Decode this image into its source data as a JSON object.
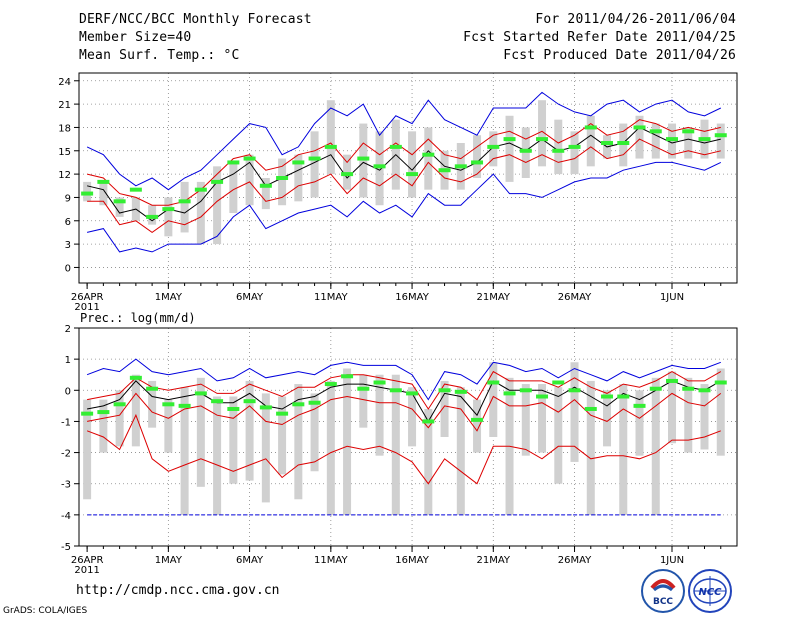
{
  "header": {
    "title": "DERF/NCC/BCC Monthly Forecast",
    "member_size": "Member Size=40",
    "variable": "Mean Surf. Temp.: °C",
    "period": "For 2011/04/26-2011/06/04",
    "started": "Fcst Started Refer Date 2011/04/25",
    "produced": "Fcst Produced Date 2011/04/26"
  },
  "footer": {
    "url": "http://cmdp.ncc.cma.gov.cn",
    "grads": "GrADS: COLA/IGES",
    "logo_bcc": "BCC",
    "logo_ncc": "NCC"
  },
  "colors": {
    "envelope": "#0000dd",
    "spread": "#dd0000",
    "mean": "#000000",
    "box": "#d0d0d0",
    "observed": "#33ee33"
  },
  "chart_data": [
    {
      "type": "line",
      "title": "Mean Surf. Temp.: °C",
      "x": [
        "26APR",
        "27APR",
        "28APR",
        "29APR",
        "30APR",
        "1MAY",
        "2MAY",
        "3MAY",
        "4MAY",
        "5MAY",
        "6MAY",
        "7MAY",
        "8MAY",
        "9MAY",
        "10MAY",
        "11MAY",
        "12MAY",
        "13MAY",
        "14MAY",
        "15MAY",
        "16MAY",
        "17MAY",
        "18MAY",
        "19MAY",
        "20MAY",
        "21MAY",
        "22MAY",
        "23MAY",
        "24MAY",
        "25MAY",
        "26MAY",
        "27MAY",
        "28MAY",
        "29MAY",
        "30MAY",
        "31MAY",
        "1JUN",
        "2JUN",
        "3JUN",
        "4JUN"
      ],
      "x_tick_labels": [
        "26APR",
        "1MAY",
        "6MAY",
        "11MAY",
        "16MAY",
        "21MAY",
        "26MAY",
        "1JUN"
      ],
      "x_tick_sub": "2011",
      "ylim": [
        -2,
        25
      ],
      "y_ticks": [
        0,
        3,
        6,
        9,
        12,
        15,
        18,
        21,
        24
      ],
      "grid": true,
      "series": [
        {
          "name": "max",
          "color": "blue",
          "values": [
            15.5,
            14.5,
            12,
            10.5,
            11.5,
            10,
            11.5,
            12.5,
            14.5,
            16.5,
            18.5,
            18,
            14.5,
            15.5,
            18.5,
            20.5,
            19.5,
            21,
            17,
            19.5,
            18.5,
            21.5,
            19,
            18,
            17,
            20.5,
            20.5,
            20.5,
            22.5,
            21,
            20,
            19.5,
            21,
            21.5,
            20,
            21,
            21.5,
            20,
            19.5,
            20.5
          ]
        },
        {
          "name": "spread-upper",
          "color": "red",
          "values": [
            12,
            11.5,
            9.5,
            9,
            8,
            8,
            8.5,
            10,
            12,
            14,
            14.5,
            12.5,
            13,
            14.5,
            15,
            16,
            13.5,
            16,
            14.5,
            16,
            14.5,
            16.5,
            14.5,
            14,
            15.5,
            17,
            17.5,
            16.5,
            17.5,
            16,
            17,
            18.5,
            17,
            17.5,
            19,
            18.5,
            17.5,
            18,
            17.5,
            18
          ]
        },
        {
          "name": "mean",
          "color": "black",
          "values": [
            10.5,
            10,
            7,
            7.5,
            6,
            7.5,
            7,
            8.5,
            11,
            12,
            13.5,
            10.5,
            11.5,
            12.5,
            13.5,
            14.5,
            11.5,
            13.5,
            12.5,
            14.5,
            12.5,
            15,
            13,
            12.5,
            13.5,
            15.5,
            16,
            15,
            16.5,
            15,
            15.5,
            17,
            15.5,
            16,
            18,
            17,
            16,
            16.5,
            16,
            16.5
          ]
        },
        {
          "name": "spread-lower",
          "color": "red",
          "values": [
            8.5,
            8.5,
            5.5,
            6,
            4.5,
            6,
            5.5,
            6.5,
            8.5,
            10,
            11,
            8.5,
            9,
            10.5,
            11,
            12,
            9.5,
            11.5,
            10.5,
            12,
            10.5,
            13.5,
            11.5,
            11,
            12,
            14,
            14.5,
            13.5,
            14.5,
            13.5,
            14,
            15.5,
            14,
            14.5,
            16.5,
            15.5,
            14.5,
            15,
            14.5,
            15
          ]
        },
        {
          "name": "min",
          "color": "blue",
          "values": [
            4.5,
            5,
            2,
            2.5,
            2,
            3,
            3,
            3,
            4,
            6.5,
            8,
            5,
            6,
            7,
            7.5,
            8,
            6.5,
            8.5,
            7,
            8,
            6.5,
            9.5,
            8,
            8,
            10,
            12,
            9.5,
            9.5,
            9,
            10,
            11,
            11.5,
            11.5,
            12.5,
            13,
            13.5,
            13.5,
            13,
            12.5,
            13.5
          ]
        },
        {
          "name": "observed",
          "color": "green",
          "values": [
            9.5,
            11,
            8.5,
            10,
            6.5,
            7.5,
            8.5,
            10,
            11,
            13.5,
            14,
            10.5,
            11.5,
            13.5,
            14,
            15.5,
            12,
            14,
            13,
            15.5,
            12,
            14.5,
            12.5,
            13,
            13.5,
            15.5,
            16.5,
            15,
            16.5,
            15,
            15.5,
            18,
            16,
            16,
            18,
            17.5,
            16.5,
            17.5,
            16.5,
            17
          ]
        },
        {
          "name": "box-high",
          "color": "gray",
          "values": [
            11,
            11,
            9,
            9,
            8,
            9,
            11,
            11,
            13,
            13.5,
            14.5,
            11.5,
            14,
            14.5,
            17.5,
            21.5,
            14.5,
            18.5,
            17.5,
            19,
            17.5,
            18,
            15,
            16,
            17,
            17.5,
            19.5,
            18,
            21.5,
            19,
            17.5,
            19.5,
            17,
            18.5,
            19.5,
            18.5,
            18.5,
            18,
            19,
            18.5
          ]
        },
        {
          "name": "box-low",
          "color": "gray",
          "values": [
            8.5,
            8,
            6.5,
            6,
            5.5,
            4,
            4.5,
            3,
            3,
            7,
            8,
            7.5,
            8,
            8.5,
            9,
            12,
            10,
            9,
            8,
            10,
            9,
            10,
            10,
            10,
            11.5,
            13,
            11,
            11.5,
            13,
            12,
            12,
            13,
            14,
            13,
            14,
            14,
            14,
            14,
            14,
            14
          ]
        }
      ]
    },
    {
      "type": "line",
      "title": "Prec.: log(mm/d)",
      "x": [
        "26APR",
        "27APR",
        "28APR",
        "29APR",
        "30APR",
        "1MAY",
        "2MAY",
        "3MAY",
        "4MAY",
        "5MAY",
        "6MAY",
        "7MAY",
        "8MAY",
        "9MAY",
        "10MAY",
        "11MAY",
        "12MAY",
        "13MAY",
        "14MAY",
        "15MAY",
        "16MAY",
        "17MAY",
        "18MAY",
        "19MAY",
        "20MAY",
        "21MAY",
        "22MAY",
        "23MAY",
        "24MAY",
        "25MAY",
        "26MAY",
        "27MAY",
        "28MAY",
        "29MAY",
        "30MAY",
        "31MAY",
        "1JUN",
        "2JUN",
        "3JUN",
        "4JUN"
      ],
      "x_tick_labels": [
        "26APR",
        "1MAY",
        "6MAY",
        "11MAY",
        "16MAY",
        "21MAY",
        "26MAY",
        "1JUN"
      ],
      "x_tick_sub": "2011",
      "ylim": [
        -5,
        2
      ],
      "y_ticks": [
        -5,
        -4,
        -3,
        -2,
        -1,
        0,
        1,
        2
      ],
      "grid": true,
      "series": [
        {
          "name": "max",
          "color": "blue",
          "values": [
            0.5,
            0.7,
            0.6,
            1.0,
            0.6,
            0.5,
            0.6,
            0.7,
            0.3,
            0.4,
            0.7,
            0.4,
            0.5,
            0.6,
            0.5,
            0.8,
            0.9,
            0.8,
            0.8,
            0.8,
            0.5,
            -0.3,
            0.6,
            0.5,
            0.2,
            0.9,
            0.8,
            0.6,
            0.7,
            0.4,
            0.7,
            0.5,
            0.3,
            0.6,
            0.4,
            0.6,
            0.8,
            0.7,
            0.7,
            0.9
          ]
        },
        {
          "name": "spread-upper",
          "color": "red",
          "values": [
            -0.3,
            -0.2,
            -0.1,
            0.4,
            0.1,
            0,
            0.1,
            0.2,
            -0.1,
            -0.1,
            0.2,
            0,
            -0.2,
            0.1,
            0.1,
            0.4,
            0.5,
            0.5,
            0.4,
            0.3,
            0.2,
            -0.6,
            0.2,
            0.1,
            -0.3,
            0.6,
            0.3,
            0.3,
            0.3,
            0.1,
            0.4,
            0.1,
            -0.1,
            0.2,
            0.1,
            0.3,
            0.6,
            0.3,
            0.3,
            0.6
          ]
        },
        {
          "name": "mean",
          "color": "black",
          "values": [
            -0.6,
            -0.5,
            -0.3,
            0.3,
            -0.2,
            -0.3,
            -0.2,
            -0.1,
            -0.4,
            -0.4,
            -0.1,
            -0.5,
            -0.6,
            -0.3,
            -0.2,
            0.1,
            0.2,
            0.2,
            0.1,
            0,
            -0.1,
            -1.0,
            -0.1,
            -0.2,
            -0.8,
            0.3,
            0,
            0,
            0,
            -0.2,
            0.1,
            -0.2,
            -0.5,
            -0.1,
            -0.3,
            0,
            0.3,
            0.1,
            0,
            0.3
          ]
        },
        {
          "name": "spread-lower",
          "color": "red",
          "values": [
            -1.0,
            -0.9,
            -0.8,
            -0.1,
            -0.7,
            -0.9,
            -0.6,
            -0.5,
            -0.8,
            -0.9,
            -0.5,
            -1.0,
            -1.1,
            -0.8,
            -0.6,
            -0.3,
            -0.2,
            -0.3,
            -0.4,
            -0.4,
            -0.6,
            -1.2,
            -0.5,
            -0.6,
            -1.3,
            -0.2,
            -0.5,
            -0.5,
            -0.4,
            -0.7,
            -0.3,
            -0.8,
            -1.0,
            -0.6,
            -0.9,
            -0.5,
            -0.1,
            -0.4,
            -0.5,
            -0.1
          ]
        },
        {
          "name": "min",
          "color": "red",
          "values": [
            -1.3,
            -1.5,
            -1.9,
            -0.8,
            -2.2,
            -2.6,
            -2.4,
            -2.2,
            -2.4,
            -2.6,
            -2.4,
            -2.2,
            -2.8,
            -2.4,
            -2.3,
            -2.0,
            -1.8,
            -1.9,
            -1.8,
            -2.0,
            -2.3,
            -3.0,
            -2.2,
            -2.6,
            -3.0,
            -1.8,
            -1.8,
            -1.9,
            -2.2,
            -1.8,
            -1.8,
            -2.2,
            -2.1,
            -2.1,
            -2.2,
            -2.0,
            -1.6,
            -1.6,
            -1.5,
            -1.3
          ]
        },
        {
          "name": "observed",
          "color": "green",
          "values": [
            -0.75,
            -0.7,
            -0.45,
            0.4,
            0.05,
            -0.45,
            -0.5,
            -0.1,
            -0.35,
            -0.6,
            -0.35,
            -0.55,
            -0.75,
            -0.45,
            -0.4,
            0.2,
            0.45,
            0.05,
            0.25,
            0.0,
            -0.1,
            -1.0,
            0.0,
            -0.05,
            -0.95,
            0.25,
            -0.1,
            0.0,
            -0.2,
            0.25,
            0.0,
            -0.6,
            -0.2,
            -0.2,
            -0.5,
            0.05,
            0.3,
            0.05,
            0.0,
            0.25
          ]
        },
        {
          "name": "box-high",
          "color": "gray",
          "values": [
            -0.3,
            -0.3,
            0,
            0.5,
            0.3,
            -0.3,
            0.1,
            0.4,
            -0.2,
            -0.2,
            0.3,
            -0.1,
            -0.2,
            0.2,
            -0.1,
            0.3,
            0.7,
            0.5,
            0.5,
            0.5,
            0.1,
            -0.6,
            0.3,
            0.1,
            -0.3,
            0.9,
            0.4,
            0.2,
            0.2,
            0.1,
            0.9,
            0.3,
            0,
            0.2,
            0,
            0.4,
            0.6,
            0.4,
            0.2,
            0.7
          ]
        },
        {
          "name": "box-low",
          "color": "gray",
          "values": [
            -3.5,
            -2.0,
            -1.8,
            -1.8,
            -1.2,
            -2.0,
            -4.0,
            -3.1,
            -4.0,
            -3.0,
            -2.9,
            -3.6,
            -2.7,
            -3.5,
            -2.6,
            -4.0,
            -4.0,
            -1.2,
            -2.1,
            -4.0,
            -1.8,
            -4.0,
            -1.5,
            -4.0,
            -2.0,
            -1.5,
            -4.0,
            -2.1,
            -2.0,
            -3.0,
            -2.3,
            -4.0,
            -1.8,
            -4.0,
            -2.1,
            -4.0,
            -1.7,
            -2.0,
            -1.9,
            -2.1
          ]
        }
      ],
      "reference_line": {
        "name": "lower-limit",
        "value": -4,
        "color": "blue"
      }
    }
  ]
}
